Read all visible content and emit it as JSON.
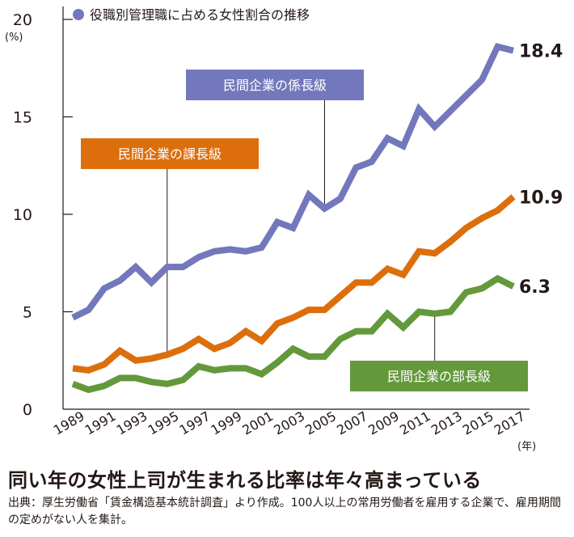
{
  "chart_data": {
    "type": "line",
    "title": "役職別管理職に占める女性割合の推移",
    "xlabel": "",
    "ylabel": "(%)",
    "x_unit": "(年)",
    "ylim": [
      0,
      20
    ],
    "yticks": [
      0,
      5,
      10,
      15,
      20
    ],
    "grid": false,
    "legend": "top-left",
    "x": [
      1989,
      1990,
      1991,
      1992,
      1993,
      1994,
      1995,
      1996,
      1997,
      1998,
      1999,
      2000,
      2001,
      2002,
      2003,
      2004,
      2005,
      2006,
      2007,
      2008,
      2009,
      2010,
      2011,
      2012,
      2013,
      2014,
      2015,
      2016,
      2017
    ],
    "xtick_labels": [
      "1989",
      "1991",
      "1993",
      "1995",
      "1997",
      "1999",
      "2001",
      "2003",
      "2005",
      "2007",
      "2009",
      "2011",
      "2013",
      "2015",
      "2017"
    ],
    "series": [
      {
        "name": "民間企業の係長級",
        "color": "#7378bc",
        "end_label": "18.4",
        "values": [
          4.7,
          5.1,
          6.2,
          6.6,
          7.3,
          6.5,
          7.3,
          7.3,
          7.8,
          8.1,
          8.2,
          8.1,
          8.3,
          9.6,
          9.3,
          11.0,
          10.3,
          10.8,
          12.4,
          12.7,
          13.9,
          13.5,
          15.4,
          14.5,
          15.3,
          16.1,
          16.9,
          18.6,
          18.4
        ]
      },
      {
        "name": "民間企業の課長級",
        "color": "#dd6e0c",
        "end_label": "10.9",
        "values": [
          2.1,
          2.0,
          2.3,
          3.0,
          2.5,
          2.6,
          2.8,
          3.1,
          3.6,
          3.1,
          3.4,
          4.0,
          3.5,
          4.4,
          4.7,
          5.1,
          5.1,
          5.8,
          6.5,
          6.5,
          7.2,
          6.9,
          8.1,
          8.0,
          8.6,
          9.3,
          9.8,
          10.2,
          10.9
        ]
      },
      {
        "name": "民間企業の部長級",
        "color": "#63993b",
        "end_label": "6.3",
        "values": [
          1.3,
          1.0,
          1.2,
          1.6,
          1.6,
          1.4,
          1.3,
          1.5,
          2.2,
          2.0,
          2.1,
          2.1,
          1.8,
          2.4,
          3.1,
          2.7,
          2.7,
          3.6,
          4.0,
          4.0,
          4.9,
          4.2,
          5.0,
          4.9,
          5.0,
          6.0,
          6.2,
          6.7,
          6.3
        ]
      }
    ],
    "annotations": [
      {
        "series": 0,
        "text": "民間企業の係長級",
        "year": 2005
      },
      {
        "series": 1,
        "text": "民間企業の課長級",
        "year": 1995
      },
      {
        "series": 2,
        "text": "民間企業の部長級",
        "year": 2012
      }
    ]
  },
  "legend_dot_color": "#7378bc",
  "headline": "同い年の女性上司が生まれる比率は年々高まっている",
  "note": "出典：厚生労働省「賃金構造基本統計調査」より作成。100人以上の常用労働者を雇用する企業で、雇用期間の定めがない人を集計。"
}
